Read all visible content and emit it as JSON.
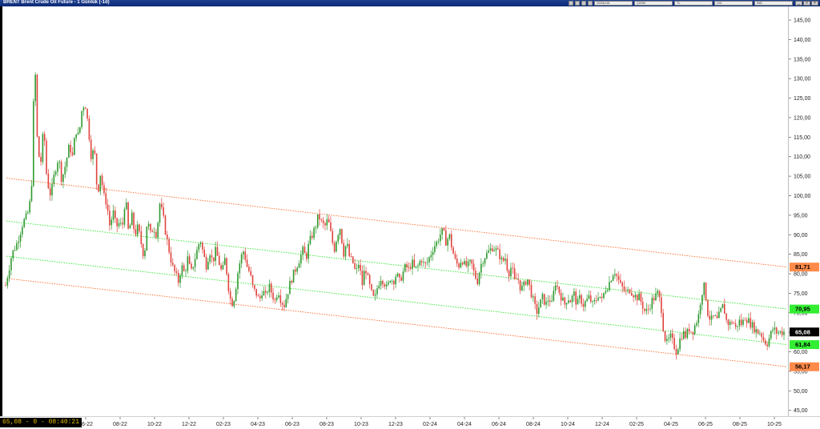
{
  "window": {
    "title": "BRENT Brent Crude Oil Future - 1 Günlük (-1d)",
    "controls": [
      "_",
      "□",
      "×"
    ]
  },
  "toolbar": {
    "items": [
      "GÜNLÜK",
      "ÇİZİM",
      "TL",
      "LİN",
      "İND"
    ]
  },
  "status": {
    "text": "65,08 - 0 - 08:40:21"
  },
  "chart_data": {
    "type": "candlestick",
    "title": "BRENT Brent Crude Oil Future - 1 Günlük (-1d)",
    "y_ticks": [
      "45,00",
      "50,00",
      "55,00",
      "60,00",
      "65,00",
      "70,00",
      "75,00",
      "80,00",
      "85,00",
      "90,00",
      "95,00",
      "100,00",
      "105,00",
      "110,00",
      "115,00",
      "120,00",
      "125,00",
      "130,00",
      "135,00",
      "140,00",
      "145,00"
    ],
    "ylim": [
      43.5,
      148.5
    ],
    "x_ticks": [
      "06-22",
      "08-22",
      "10-22",
      "12-22",
      "02-23",
      "04-23",
      "06-23",
      "08-23",
      "10-23",
      "12-23",
      "02-24",
      "04-24",
      "06-24",
      "08-24",
      "10-24",
      "12-24",
      "02-25",
      "04-25",
      "06-25",
      "08-25",
      "10-25"
    ],
    "price_path": [
      [
        0.0,
        77
      ],
      [
        0.008,
        85
      ],
      [
        0.015,
        88
      ],
      [
        0.022,
        93
      ],
      [
        0.028,
        95
      ],
      [
        0.033,
        100
      ],
      [
        0.036,
        125
      ],
      [
        0.038,
        132
      ],
      [
        0.041,
        112
      ],
      [
        0.045,
        108
      ],
      [
        0.049,
        118
      ],
      [
        0.053,
        104
      ],
      [
        0.058,
        100
      ],
      [
        0.063,
        106
      ],
      [
        0.068,
        110
      ],
      [
        0.072,
        104
      ],
      [
        0.077,
        108
      ],
      [
        0.082,
        113
      ],
      [
        0.086,
        110
      ],
      [
        0.09,
        117
      ],
      [
        0.094,
        115
      ],
      [
        0.098,
        122
      ],
      [
        0.102,
        124
      ],
      [
        0.106,
        118
      ],
      [
        0.11,
        110
      ],
      [
        0.114,
        112
      ],
      [
        0.118,
        100
      ],
      [
        0.122,
        106
      ],
      [
        0.126,
        100
      ],
      [
        0.13,
        98
      ],
      [
        0.134,
        92
      ],
      [
        0.138,
        96
      ],
      [
        0.142,
        92
      ],
      [
        0.146,
        93
      ],
      [
        0.15,
        92
      ],
      [
        0.154,
        100
      ],
      [
        0.158,
        90
      ],
      [
        0.162,
        95
      ],
      [
        0.166,
        90
      ],
      [
        0.17,
        92
      ],
      [
        0.174,
        88
      ],
      [
        0.178,
        84
      ],
      [
        0.182,
        94
      ],
      [
        0.186,
        90
      ],
      [
        0.19,
        92
      ],
      [
        0.194,
        90
      ],
      [
        0.198,
        98
      ],
      [
        0.202,
        95
      ],
      [
        0.206,
        90
      ],
      [
        0.21,
        86
      ],
      [
        0.214,
        82
      ],
      [
        0.218,
        80
      ],
      [
        0.222,
        78
      ],
      [
        0.226,
        82
      ],
      [
        0.23,
        80
      ],
      [
        0.234,
        84
      ],
      [
        0.238,
        80
      ],
      [
        0.242,
        83
      ],
      [
        0.246,
        86
      ],
      [
        0.25,
        89
      ],
      [
        0.254,
        85
      ],
      [
        0.258,
        82
      ],
      [
        0.262,
        86
      ],
      [
        0.266,
        83
      ],
      [
        0.27,
        86
      ],
      [
        0.274,
        83
      ],
      [
        0.278,
        80
      ],
      [
        0.282,
        84
      ],
      [
        0.286,
        77
      ],
      [
        0.29,
        72
      ],
      [
        0.294,
        74
      ],
      [
        0.298,
        80
      ],
      [
        0.302,
        84
      ],
      [
        0.306,
        86
      ],
      [
        0.31,
        82
      ],
      [
        0.314,
        80
      ],
      [
        0.318,
        76
      ],
      [
        0.322,
        75
      ],
      [
        0.326,
        73
      ],
      [
        0.33,
        76
      ],
      [
        0.334,
        74
      ],
      [
        0.338,
        77
      ],
      [
        0.342,
        75
      ],
      [
        0.346,
        73
      ],
      [
        0.35,
        76
      ],
      [
        0.354,
        73
      ],
      [
        0.358,
        72
      ],
      [
        0.362,
        75
      ],
      [
        0.366,
        78
      ],
      [
        0.37,
        80
      ],
      [
        0.374,
        82
      ],
      [
        0.378,
        84
      ],
      [
        0.382,
        86
      ],
      [
        0.386,
        84
      ],
      [
        0.39,
        88
      ],
      [
        0.394,
        90
      ],
      [
        0.398,
        92
      ],
      [
        0.402,
        95
      ],
      [
        0.406,
        93
      ],
      [
        0.41,
        92
      ],
      [
        0.414,
        94
      ],
      [
        0.418,
        90
      ],
      [
        0.422,
        86
      ],
      [
        0.426,
        90
      ],
      [
        0.43,
        92
      ],
      [
        0.434,
        85
      ],
      [
        0.438,
        88
      ],
      [
        0.442,
        84
      ],
      [
        0.446,
        83
      ],
      [
        0.45,
        80
      ],
      [
        0.454,
        83
      ],
      [
        0.458,
        77
      ],
      [
        0.462,
        82
      ],
      [
        0.466,
        78
      ],
      [
        0.47,
        75
      ],
      [
        0.474,
        73
      ],
      [
        0.478,
        77
      ],
      [
        0.482,
        79
      ],
      [
        0.486,
        78
      ],
      [
        0.49,
        76
      ],
      [
        0.494,
        79
      ],
      [
        0.498,
        78
      ],
      [
        0.502,
        80
      ],
      [
        0.506,
        78
      ],
      [
        0.51,
        80
      ],
      [
        0.514,
        82
      ],
      [
        0.518,
        81
      ],
      [
        0.522,
        83
      ],
      [
        0.526,
        81
      ],
      [
        0.53,
        82
      ],
      [
        0.534,
        84
      ],
      [
        0.538,
        82
      ],
      [
        0.542,
        83
      ],
      [
        0.546,
        85
      ],
      [
        0.55,
        87
      ],
      [
        0.554,
        88
      ],
      [
        0.558,
        90
      ],
      [
        0.562,
        91
      ],
      [
        0.566,
        88
      ],
      [
        0.57,
        90
      ],
      [
        0.574,
        86
      ],
      [
        0.578,
        83
      ],
      [
        0.582,
        82
      ],
      [
        0.586,
        84
      ],
      [
        0.59,
        82
      ],
      [
        0.594,
        82
      ],
      [
        0.598,
        83
      ],
      [
        0.602,
        80
      ],
      [
        0.606,
        78
      ],
      [
        0.61,
        82
      ],
      [
        0.614,
        84
      ],
      [
        0.618,
        85
      ],
      [
        0.622,
        86
      ],
      [
        0.626,
        87
      ],
      [
        0.63,
        86
      ],
      [
        0.634,
        85
      ],
      [
        0.638,
        83
      ],
      [
        0.642,
        84
      ],
      [
        0.646,
        80
      ],
      [
        0.65,
        82
      ],
      [
        0.654,
        78
      ],
      [
        0.658,
        79
      ],
      [
        0.662,
        76
      ],
      [
        0.666,
        77
      ],
      [
        0.67,
        79
      ],
      [
        0.674,
        76
      ],
      [
        0.678,
        73
      ],
      [
        0.682,
        70
      ],
      [
        0.686,
        72
      ],
      [
        0.69,
        74
      ],
      [
        0.694,
        72
      ],
      [
        0.698,
        74
      ],
      [
        0.702,
        72
      ],
      [
        0.706,
        78
      ],
      [
        0.71,
        76
      ],
      [
        0.714,
        74
      ],
      [
        0.718,
        72
      ],
      [
        0.722,
        74
      ],
      [
        0.726,
        73
      ],
      [
        0.73,
        75
      ],
      [
        0.734,
        72
      ],
      [
        0.738,
        74
      ],
      [
        0.742,
        72
      ],
      [
        0.746,
        73
      ],
      [
        0.75,
        74
      ],
      [
        0.754,
        72
      ],
      [
        0.758,
        73
      ],
      [
        0.762,
        75
      ],
      [
        0.766,
        73
      ],
      [
        0.77,
        76
      ],
      [
        0.774,
        77
      ],
      [
        0.778,
        79
      ],
      [
        0.782,
        81
      ],
      [
        0.786,
        79
      ],
      [
        0.79,
        77
      ],
      [
        0.794,
        76
      ],
      [
        0.798,
        75
      ],
      [
        0.802,
        76
      ],
      [
        0.806,
        75
      ],
      [
        0.81,
        74
      ],
      [
        0.814,
        74
      ],
      [
        0.818,
        72
      ],
      [
        0.822,
        70
      ],
      [
        0.826,
        71
      ],
      [
        0.83,
        73
      ],
      [
        0.834,
        74
      ],
      [
        0.838,
        75
      ],
      [
        0.842,
        72
      ],
      [
        0.846,
        64
      ],
      [
        0.85,
        62
      ],
      [
        0.854,
        64
      ],
      [
        0.858,
        62
      ],
      [
        0.862,
        60
      ],
      [
        0.866,
        63
      ],
      [
        0.87,
        65
      ],
      [
        0.874,
        64
      ],
      [
        0.878,
        66
      ],
      [
        0.882,
        65
      ],
      [
        0.886,
        67
      ],
      [
        0.89,
        69
      ],
      [
        0.894,
        75
      ],
      [
        0.898,
        77
      ],
      [
        0.902,
        70
      ],
      [
        0.906,
        68
      ],
      [
        0.91,
        69
      ],
      [
        0.914,
        68
      ],
      [
        0.918,
        70
      ],
      [
        0.922,
        72
      ],
      [
        0.926,
        68
      ],
      [
        0.93,
        67
      ],
      [
        0.934,
        68
      ],
      [
        0.938,
        66
      ],
      [
        0.942,
        68
      ],
      [
        0.946,
        67
      ],
      [
        0.95,
        69
      ],
      [
        0.954,
        68
      ],
      [
        0.958,
        67
      ],
      [
        0.962,
        66
      ],
      [
        0.966,
        65
      ],
      [
        0.97,
        65
      ],
      [
        0.974,
        63
      ],
      [
        0.978,
        62
      ],
      [
        0.982,
        64
      ],
      [
        0.986,
        66
      ],
      [
        0.99,
        65
      ],
      [
        1.0,
        65.08
      ]
    ],
    "channel_lines": [
      {
        "name": "upper",
        "color": "#ff6a2a",
        "style": "dotted",
        "y_start": 104.5,
        "y_end": 81.71
      },
      {
        "name": "mid-upper",
        "color": "#2ee82e",
        "style": "dotted",
        "y_start": 93.5,
        "y_end": 70.95
      },
      {
        "name": "mid-lower",
        "color": "#2ee82e",
        "style": "dotted",
        "y_start": 84.5,
        "y_end": 61.84
      },
      {
        "name": "lower",
        "color": "#ff6a2a",
        "style": "dotted",
        "y_start": 78.8,
        "y_end": 56.17
      }
    ],
    "price_labels": [
      {
        "text": "81,71",
        "value": 81.71,
        "bg": "#ff8a4a",
        "fg": "#000000"
      },
      {
        "text": "70,95",
        "value": 70.95,
        "bg": "#33ee33",
        "fg": "#000000"
      },
      {
        "text": "65,08",
        "value": 65.08,
        "bg": "#000000",
        "fg": "#ffffff"
      },
      {
        "text": "61,84",
        "value": 61.84,
        "bg": "#33ee33",
        "fg": "#000000"
      },
      {
        "text": "56,17",
        "value": 56.17,
        "bg": "#ff8a4a",
        "fg": "#000000"
      }
    ],
    "colors": {
      "up": "#2e9a2e",
      "down": "#e0433c",
      "grid": "#d9d9d9"
    }
  }
}
